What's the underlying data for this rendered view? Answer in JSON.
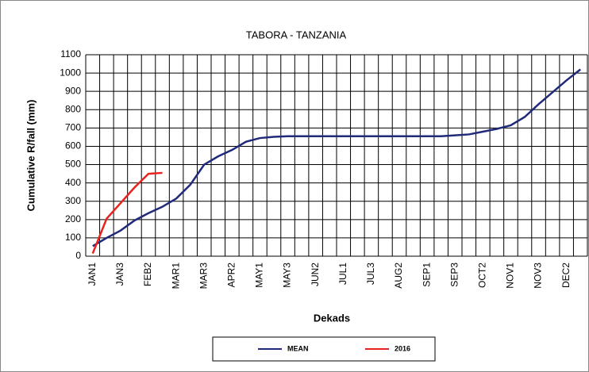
{
  "chart_data": {
    "type": "line",
    "title": "TABORA - TANZANIA",
    "xlabel": "Dekads",
    "ylabel": "Cumulative R/fall (mm)",
    "categories": [
      "JAN1",
      null,
      "JAN3",
      null,
      "FEB2",
      null,
      "MAR1",
      null,
      "MAR3",
      null,
      "APR2",
      null,
      "MAY1",
      null,
      "MAY3",
      null,
      "JUN2",
      null,
      "JUL1",
      null,
      "JUL3",
      null,
      "AUG2",
      null,
      "SEP1",
      null,
      "SEP3",
      null,
      "OCT2",
      null,
      "NOV1",
      null,
      "NOV3",
      null,
      "DEC2",
      null
    ],
    "series": [
      {
        "name": "MEAN",
        "color": "#1f2a7a",
        "values": [
          55,
          100,
          140,
          195,
          235,
          270,
          315,
          390,
          500,
          545,
          580,
          625,
          645,
          652,
          655,
          655,
          655,
          655,
          655,
          655,
          655,
          655,
          655,
          655,
          655,
          655,
          660,
          665,
          680,
          695,
          715,
          760,
          830,
          895,
          960,
          1020
        ]
      },
      {
        "name": "2016",
        "color": "#e8231f",
        "values": [
          15,
          205,
          290,
          375,
          450,
          455,
          null,
          null,
          null,
          null,
          null,
          null,
          null,
          null,
          null,
          null,
          null,
          null,
          null,
          null,
          null,
          null,
          null,
          null,
          null,
          null,
          null,
          null,
          null,
          null,
          null,
          null,
          null,
          null,
          null,
          null
        ]
      }
    ],
    "ylim": [
      0,
      1100
    ],
    "yticks": [
      0,
      100,
      200,
      300,
      400,
      500,
      600,
      700,
      800,
      900,
      1000,
      1100
    ],
    "grid": true,
    "legend": "bottom"
  }
}
